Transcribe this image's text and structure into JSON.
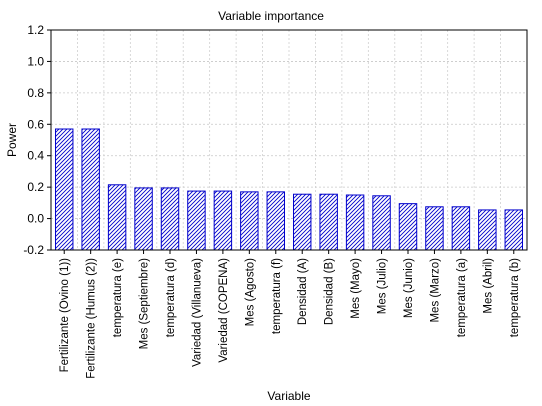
{
  "chart_data": {
    "type": "bar",
    "title": "Variable importance",
    "xlabel": "Variable",
    "ylabel": "Power",
    "ylim": [
      -0.2,
      1.2
    ],
    "yticks": [
      -0.2,
      0.0,
      0.2,
      0.4,
      0.6,
      0.8,
      1.0,
      1.2
    ],
    "ytick_labels": [
      "-0.2",
      "0.0",
      "0.2",
      "0.4",
      "0.6",
      "0.8",
      "1.0",
      "1.2"
    ],
    "grid": true,
    "bar_color": "#0000cc",
    "hatch": "diagonal",
    "categories": [
      "Fertilizante (Ovino (1))",
      "Fertilizante (Humus (2))",
      "temperatura (e)",
      "Mes (Septiembre)",
      "temperatura (d)",
      "Variedad (Villanueva)",
      "Variedad (COPENA)",
      "Mes (Agosto)",
      "temperatura (f)",
      "Densidad (A)",
      "Densidad (B)",
      "Mes (Mayo)",
      "Mes (Julio)",
      "Mes (Junio)",
      "Mes (Marzo)",
      "temperatura (a)",
      "Mes (Abril)",
      "temperatura (b)"
    ],
    "values": [
      0.57,
      0.57,
      0.215,
      0.195,
      0.195,
      0.175,
      0.175,
      0.17,
      0.17,
      0.155,
      0.155,
      0.15,
      0.145,
      0.095,
      0.075,
      0.075,
      0.055,
      0.055
    ]
  }
}
